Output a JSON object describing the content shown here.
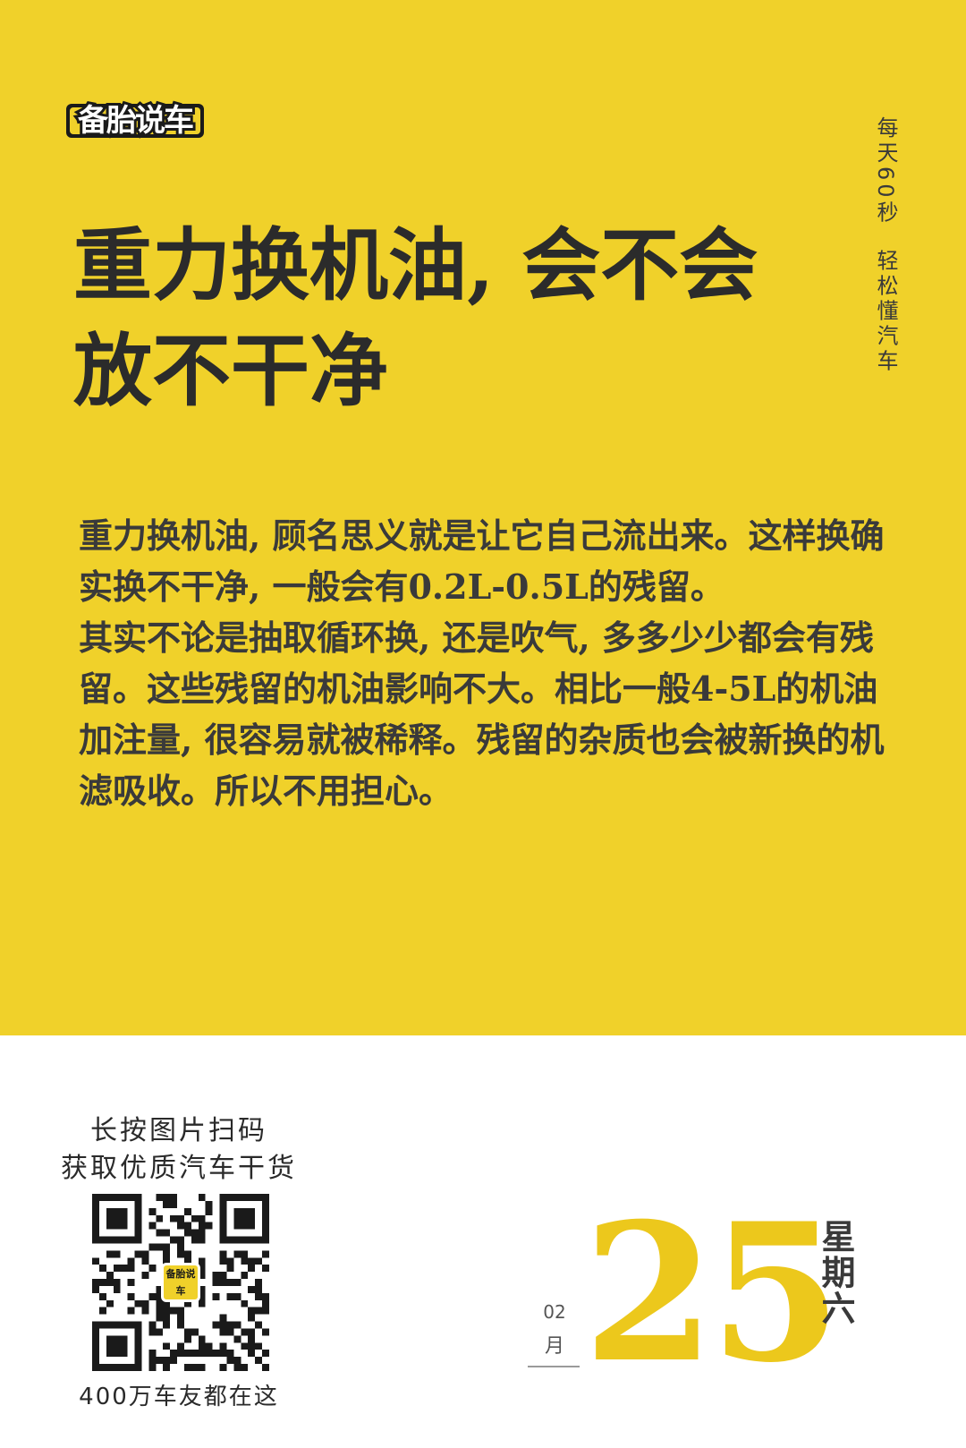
{
  "brand": {
    "logo_text": "备胎说车"
  },
  "header": {
    "title_line1": "重力换机油, 会不会",
    "title_line2": "放不干净",
    "tagline_part1": "每天60秒",
    "tagline_part2": "轻松懂汽车"
  },
  "article": {
    "paragraphs": [
      "重力换机油, 顾名思义就是让它自己流出来。这样换确实换不干净, 一般会有0.2L-0.5L的残留。",
      "其实不论是抽取循环换, 还是吹气, 多多少少都会有残留。这些残留的机油影响不大。相比一般4-5L的机油加注量, 很容易就被稀释。残留的杂质也会被新换的机滤吸收。所以不用担心。"
    ]
  },
  "qr": {
    "caption_line1": "长按图片扫码",
    "caption_line2": "获取优质汽车干货",
    "center_logo_text": "备胎说车",
    "footer": "400万车友都在这"
  },
  "date": {
    "month_number": "02",
    "month_label": "月",
    "day": "25",
    "weekday": "星期六"
  },
  "colors": {
    "brand_yellow": "#f0d12a",
    "day_yellow": "#ecc81c",
    "text_dark": "#2b2b2b"
  }
}
